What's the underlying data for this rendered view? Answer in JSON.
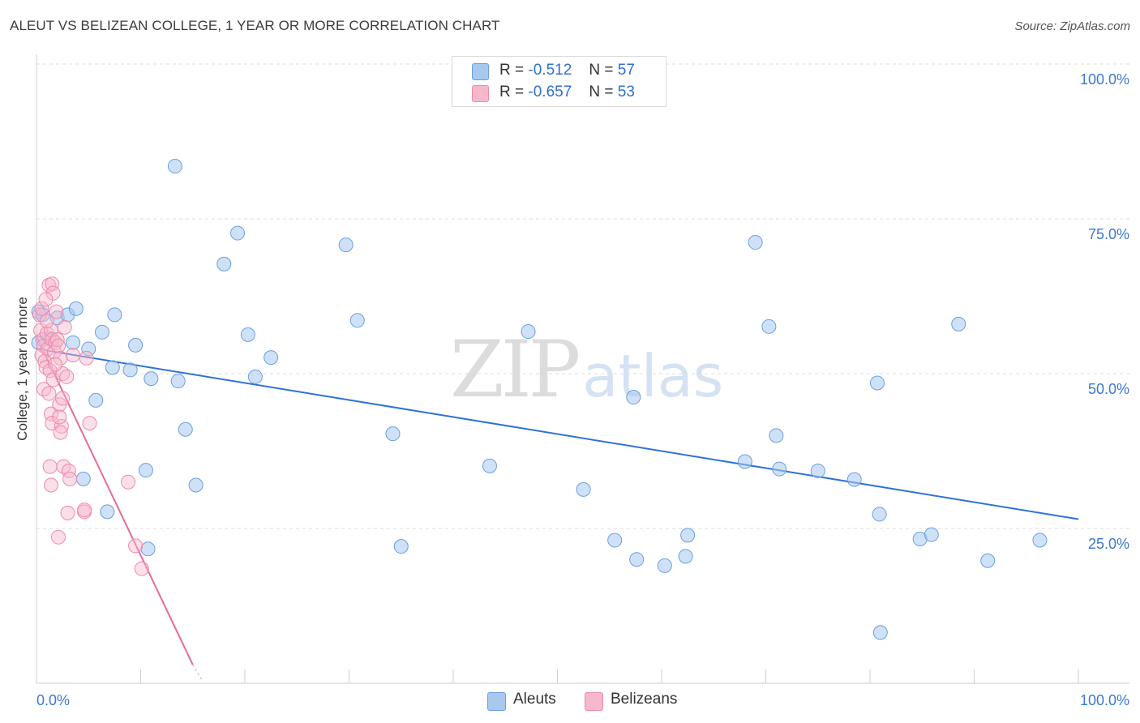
{
  "title": "ALEUT VS BELIZEAN COLLEGE, 1 YEAR OR MORE CORRELATION CHART",
  "source": "Source: ZipAtlas.com",
  "watermark": {
    "zip": "ZIP",
    "atlas": "atlas"
  },
  "legend": {
    "series1": {
      "r_label": "R =",
      "r_value": "-0.512",
      "n_label": "N =",
      "n_value": "57",
      "color": "#a8c8f0"
    },
    "series2": {
      "r_label": "R =",
      "r_value": "-0.657",
      "n_label": "N =",
      "n_value": "53",
      "color": "#f7b8cc"
    }
  },
  "bottom_legend": {
    "series1": "Aleuts",
    "series2": "Belizeans"
  },
  "colors": {
    "aleut_fill": "#a8c8f0",
    "aleut_stroke": "#6a9fe0",
    "aleut_line": "#2f72d6",
    "belizean_fill": "#f7b8cc",
    "belizean_stroke": "#ec8aab",
    "belizean_line": "#e56a98",
    "axis_label": "#3b78d0",
    "grid": "#dddddd"
  },
  "chart_data": {
    "type": "scatter",
    "title": "ALEUT VS BELIZEAN COLLEGE, 1 YEAR OR MORE CORRELATION CHART",
    "xlabel": "",
    "ylabel": "College, 1 year or more",
    "xlim": [
      0,
      100
    ],
    "ylim": [
      0,
      100
    ],
    "x_tick_labels": [
      "0.0%",
      "100.0%"
    ],
    "y_tick_values": [
      25,
      50,
      75,
      100
    ],
    "y_tick_labels": [
      "25.0%",
      "50.0%",
      "75.0%",
      "100.0%"
    ],
    "series": [
      {
        "name": "Aleuts",
        "r": -0.512,
        "n": 57,
        "trend": {
          "x0": 0,
          "y0": 54.0,
          "x1": 100,
          "y1": 26.5
        },
        "points": [
          [
            0.2,
            60.0
          ],
          [
            0.6,
            59.5
          ],
          [
            1.2,
            55.7
          ],
          [
            2.0,
            59.0
          ],
          [
            3.0,
            59.5
          ],
          [
            3.5,
            55.0
          ],
          [
            3.8,
            60.5
          ],
          [
            4.5,
            33.0
          ],
          [
            5.0,
            54.0
          ],
          [
            5.7,
            45.7
          ],
          [
            6.3,
            56.7
          ],
          [
            6.8,
            27.7
          ],
          [
            7.5,
            59.5
          ],
          [
            7.3,
            51.0
          ],
          [
            9.0,
            50.6
          ],
          [
            9.5,
            54.6
          ],
          [
            10.5,
            34.4
          ],
          [
            10.7,
            21.7
          ],
          [
            11.0,
            49.2
          ],
          [
            13.3,
            83.5
          ],
          [
            13.6,
            48.8
          ],
          [
            14.3,
            41.0
          ],
          [
            15.3,
            32.0
          ],
          [
            18.0,
            67.7
          ],
          [
            19.3,
            72.7
          ],
          [
            20.3,
            56.3
          ],
          [
            21.0,
            49.5
          ],
          [
            22.5,
            52.6
          ],
          [
            29.7,
            70.8
          ],
          [
            30.8,
            58.6
          ],
          [
            34.2,
            40.3
          ],
          [
            35.0,
            22.1
          ],
          [
            43.5,
            35.1
          ],
          [
            47.2,
            56.8
          ],
          [
            52.5,
            31.3
          ],
          [
            55.5,
            23.1
          ],
          [
            57.3,
            46.2
          ],
          [
            57.6,
            20.0
          ],
          [
            60.3,
            19.0
          ],
          [
            62.3,
            20.5
          ],
          [
            62.5,
            23.9
          ],
          [
            68.0,
            35.8
          ],
          [
            69.0,
            71.2
          ],
          [
            70.3,
            57.6
          ],
          [
            71.0,
            40.0
          ],
          [
            71.3,
            34.6
          ],
          [
            75.0,
            34.3
          ],
          [
            78.5,
            32.9
          ],
          [
            80.7,
            48.5
          ],
          [
            80.9,
            27.3
          ],
          [
            81.0,
            8.2
          ],
          [
            84.8,
            23.3
          ],
          [
            85.9,
            24.0
          ],
          [
            88.5,
            58.0
          ],
          [
            91.3,
            19.8
          ],
          [
            96.3,
            23.1
          ],
          [
            0.2,
            55.0
          ]
        ]
      },
      {
        "name": "Belizeans",
        "r": -0.657,
        "n": 53,
        "trend": {
          "x0": 0,
          "y0": 56.0,
          "x1": 15.0,
          "y1": 3.0,
          "dash_to_x": 15.9,
          "dash_to_y": 0.5
        },
        "points": [
          [
            0.3,
            59.5
          ],
          [
            0.5,
            60.5
          ],
          [
            0.4,
            57.0
          ],
          [
            0.6,
            55.5
          ],
          [
            0.7,
            54.5
          ],
          [
            0.5,
            53.0
          ],
          [
            0.8,
            52.0
          ],
          [
            0.9,
            51.0
          ],
          [
            1.0,
            56.5
          ],
          [
            1.1,
            54.0
          ],
          [
            0.7,
            47.5
          ],
          [
            1.2,
            64.3
          ],
          [
            1.5,
            64.5
          ],
          [
            1.6,
            63.0
          ],
          [
            1.4,
            57.0
          ],
          [
            1.5,
            55.5
          ],
          [
            1.8,
            55.0
          ],
          [
            1.7,
            53.5
          ],
          [
            1.3,
            50.5
          ],
          [
            1.6,
            49.0
          ],
          [
            1.9,
            60.0
          ],
          [
            2.0,
            55.5
          ],
          [
            2.1,
            54.5
          ],
          [
            2.3,
            52.5
          ],
          [
            2.5,
            50.0
          ],
          [
            1.2,
            46.8
          ],
          [
            1.4,
            43.5
          ],
          [
            1.5,
            42.0
          ],
          [
            2.4,
            41.5
          ],
          [
            2.3,
            40.5
          ],
          [
            2.2,
            45.0
          ],
          [
            2.5,
            46.0
          ],
          [
            2.2,
            43.0
          ],
          [
            1.3,
            35.0
          ],
          [
            2.6,
            35.0
          ],
          [
            1.4,
            32.0
          ],
          [
            3.1,
            34.3
          ],
          [
            3.2,
            33.0
          ],
          [
            3.0,
            27.5
          ],
          [
            4.6,
            27.7
          ],
          [
            2.1,
            23.6
          ],
          [
            5.1,
            42.0
          ],
          [
            4.8,
            52.5
          ],
          [
            4.6,
            28.0
          ],
          [
            8.8,
            32.5
          ],
          [
            9.5,
            22.2
          ],
          [
            10.1,
            18.5
          ],
          [
            0.9,
            62.0
          ],
          [
            2.7,
            57.5
          ],
          [
            1.0,
            58.5
          ],
          [
            3.5,
            53.0
          ],
          [
            1.8,
            51.5
          ],
          [
            2.9,
            49.5
          ]
        ]
      }
    ]
  }
}
